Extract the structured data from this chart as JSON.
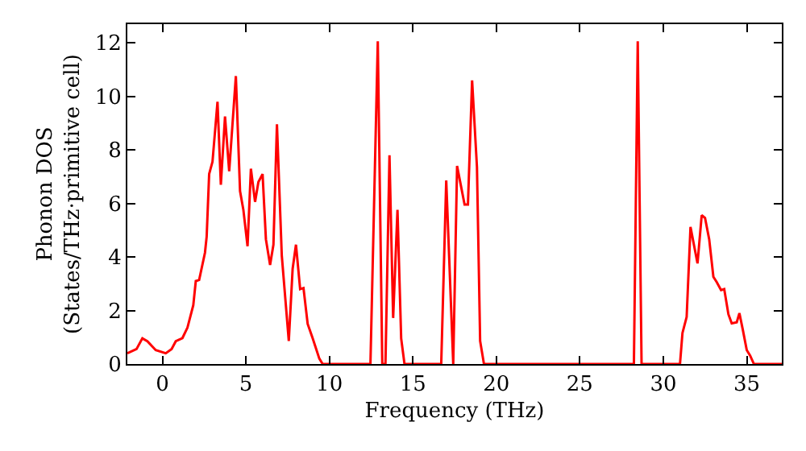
{
  "chart_data": {
    "type": "line",
    "xlabel": "Frequency (THz)",
    "ylabel": "Phonon DOS\n(States/THz·primitive cell)",
    "x": [
      -2.1,
      -1.55,
      -1.2,
      -0.9,
      -0.4,
      0.2,
      0.55,
      0.8,
      1.2,
      1.5,
      1.85,
      2.0,
      2.2,
      2.55,
      2.65,
      2.8,
      3.0,
      3.3,
      3.5,
      3.75,
      4.0,
      4.4,
      4.65,
      4.85,
      5.1,
      5.3,
      5.55,
      5.75,
      6.0,
      6.2,
      6.45,
      6.65,
      6.86,
      7.15,
      7.57,
      7.8,
      8.0,
      8.25,
      8.45,
      8.7,
      9.0,
      9.4,
      9.6,
      12.46,
      12.9,
      13.17,
      13.36,
      13.6,
      13.82,
      14.08,
      14.3,
      14.5,
      16.7,
      17.0,
      17.42,
      17.65,
      18.1,
      18.3,
      18.55,
      18.84,
      19.03,
      19.26,
      28.24,
      28.47,
      28.7,
      31.0,
      31.15,
      31.4,
      31.63,
      32.05,
      32.3,
      32.5,
      32.75,
      33.0,
      33.2,
      33.46,
      33.65,
      33.9,
      34.1,
      34.4,
      34.56,
      34.77,
      35.0,
      35.2,
      35.43,
      37.1
    ],
    "series": [
      {
        "color": "#ff0000",
        "values": [
          0.4,
          0.56,
          0.96,
          0.85,
          0.52,
          0.4,
          0.56,
          0.85,
          0.97,
          1.36,
          2.2,
          3.1,
          3.14,
          4.16,
          4.76,
          7.1,
          7.56,
          9.8,
          6.7,
          9.25,
          7.2,
          10.76,
          6.46,
          5.76,
          4.4,
          7.3,
          6.06,
          6.8,
          7.1,
          4.66,
          3.7,
          4.46,
          8.96,
          4.06,
          0.86,
          3.56,
          4.46,
          2.8,
          2.84,
          1.5,
          0.96,
          0.2,
          0,
          0,
          12.06,
          0,
          0,
          7.8,
          1.72,
          5.76,
          0.96,
          0,
          0,
          6.86,
          0,
          7.4,
          5.96,
          5.96,
          10.6,
          7.36,
          0.86,
          0,
          0,
          12.06,
          0,
          0,
          1.16,
          1.76,
          5.12,
          3.76,
          5.56,
          5.46,
          4.66,
          3.26,
          3.06,
          2.76,
          2.8,
          1.86,
          1.52,
          1.56,
          1.9,
          1.26,
          0.52,
          0.32,
          0,
          0
        ]
      }
    ],
    "xlim": [
      -2.1,
      37.1
    ],
    "ylim": [
      0,
      12.7
    ],
    "xticks": [
      0,
      5,
      10,
      15,
      20,
      25,
      30,
      35
    ],
    "yticks": [
      0,
      2,
      4,
      6,
      8,
      10,
      12
    ]
  }
}
